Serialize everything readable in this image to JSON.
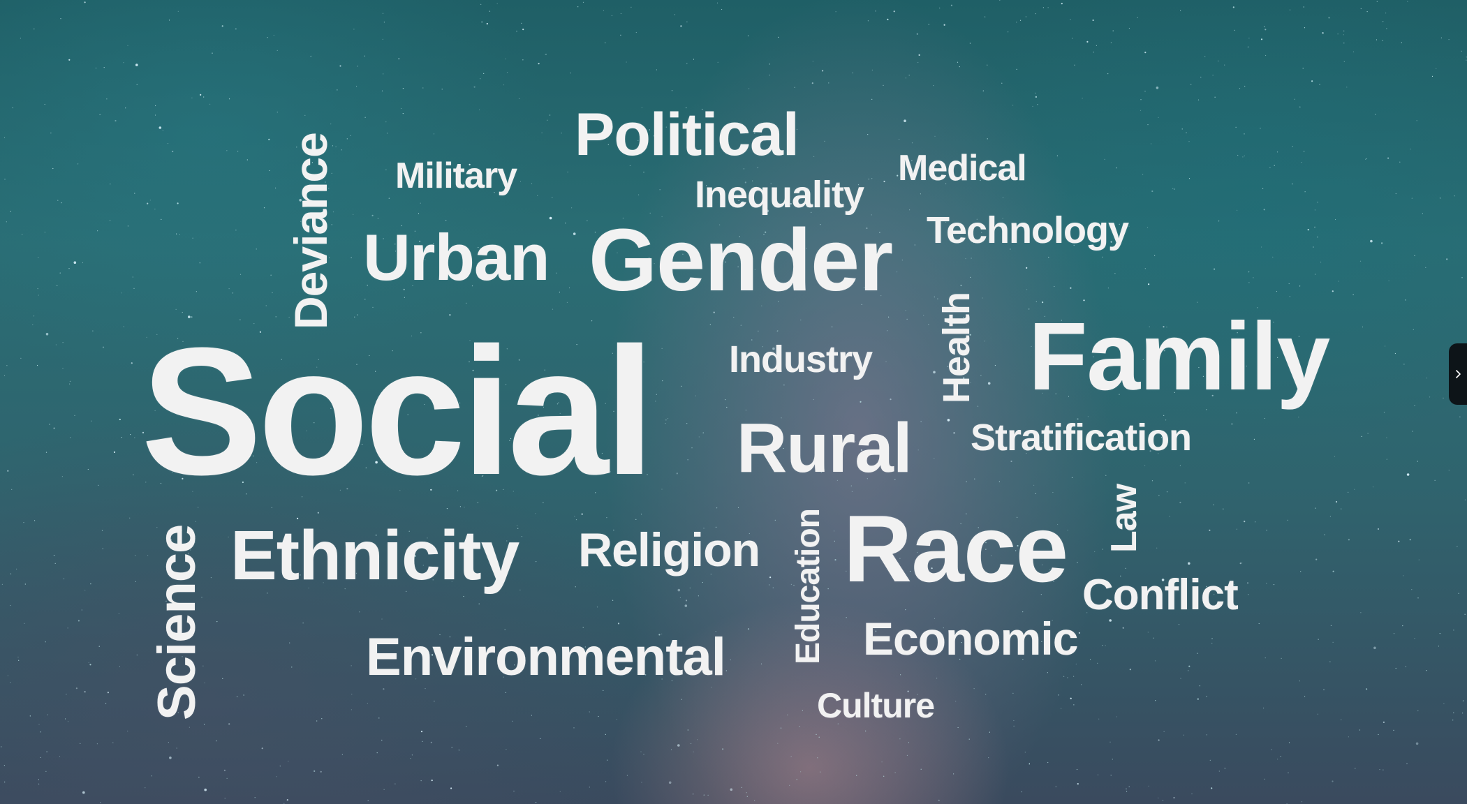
{
  "cloud": {
    "words": {
      "political": "Political",
      "military": "Military",
      "medical": "Medical",
      "inequality": "Inequality",
      "deviance": "Deviance",
      "technology": "Technology",
      "urban": "Urban",
      "gender": "Gender",
      "health": "Health",
      "social": "Social",
      "industry": "Industry",
      "family": "Family",
      "rural": "Rural",
      "stratification": "Stratification",
      "law": "Law",
      "science": "Science",
      "ethnicity": "Ethnicity",
      "religion": "Religion",
      "education": "Education",
      "race": "Race",
      "conflict": "Conflict",
      "economic": "Economic",
      "environmental": "Environmental",
      "culture": "Culture"
    }
  },
  "side_panel": {
    "toggle_icon": "chevron-right-icon"
  },
  "colors": {
    "text": "#f2f2f2",
    "background": "#2a6d74"
  }
}
